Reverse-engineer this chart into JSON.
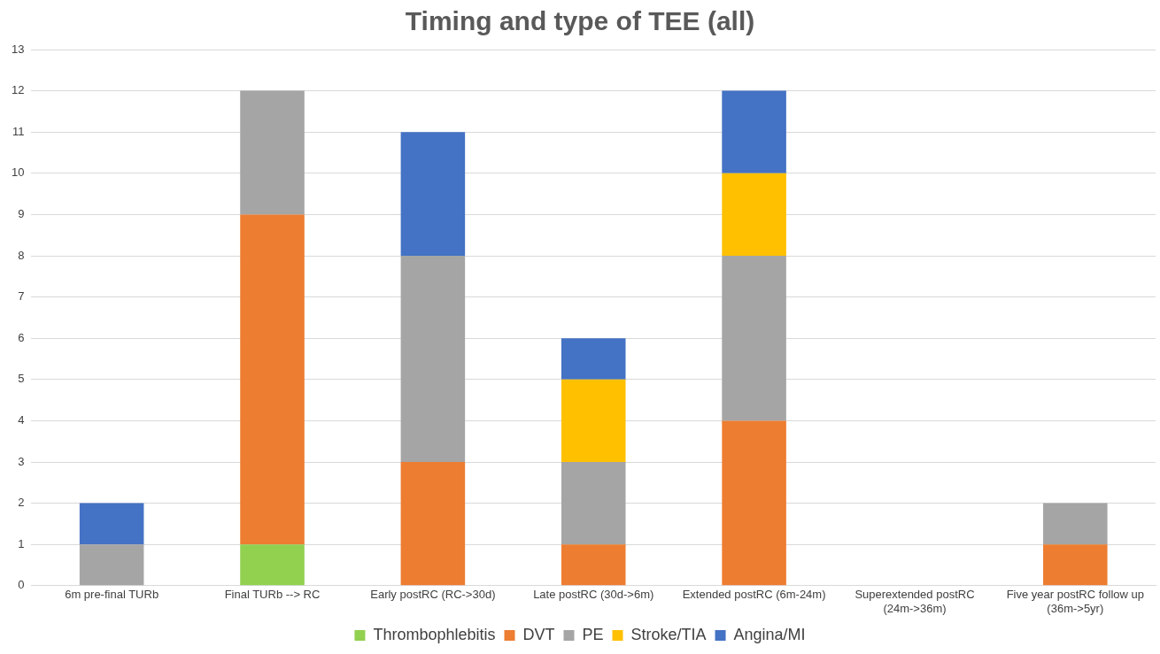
{
  "chart_data": {
    "type": "bar",
    "title": "Timing and type of TEE (all)",
    "stacked": true,
    "categories": [
      "6m pre-final TURb",
      "Final TURb --> RC",
      "Early postRC (RC->30d)",
      "Late postRC (30d->6m)",
      "Extended postRC (6m-24m)",
      "Superextended postRC (24m->36m)",
      "Five year postRC follow up (36m->5yr)"
    ],
    "series": [
      {
        "name": "Thrombophlebitis",
        "color": "#92d050",
        "values": [
          0,
          1,
          0,
          0,
          0,
          0,
          0
        ]
      },
      {
        "name": "DVT",
        "color": "#ed7d31",
        "values": [
          0,
          8,
          3,
          1,
          4,
          0,
          1
        ]
      },
      {
        "name": "PE",
        "color": "#a5a5a5",
        "values": [
          1,
          3,
          5,
          2,
          4,
          0,
          1
        ]
      },
      {
        "name": "Stroke/TIA",
        "color": "#ffc000",
        "values": [
          0,
          0,
          0,
          2,
          2,
          0,
          0
        ]
      },
      {
        "name": "Angina/MI",
        "color": "#4472c4",
        "values": [
          1,
          0,
          3,
          1,
          2,
          0,
          0
        ]
      }
    ],
    "ylim": [
      0,
      13
    ],
    "yticks": [
      0,
      1,
      2,
      3,
      4,
      5,
      6,
      7,
      8,
      9,
      10,
      11,
      12,
      13
    ],
    "grid": "y",
    "legend": "bottom"
  }
}
